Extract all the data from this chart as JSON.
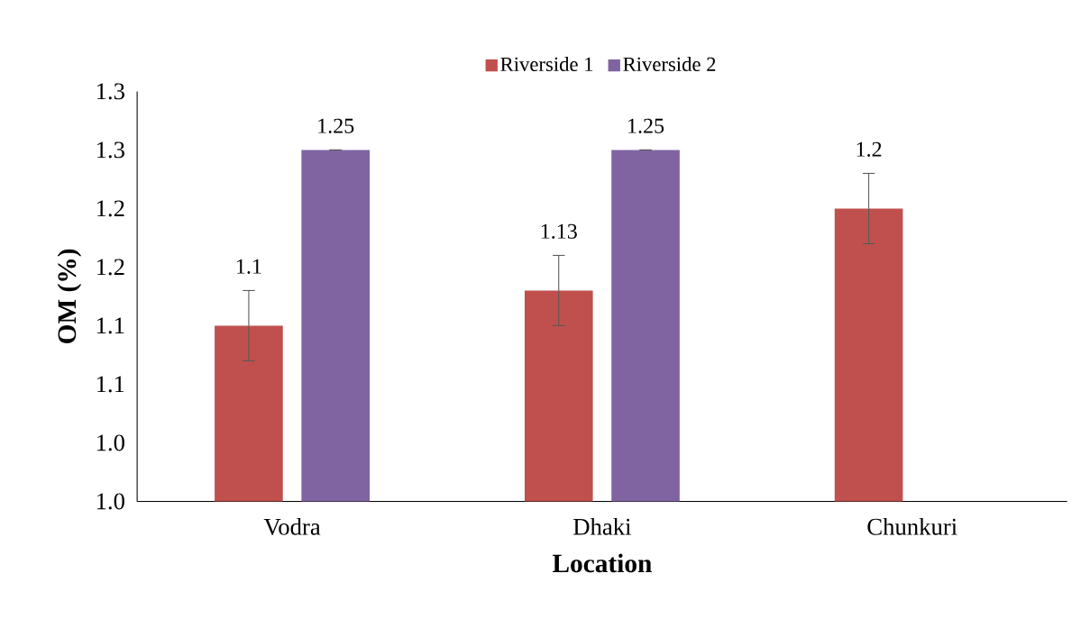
{
  "chart_data": {
    "type": "bar",
    "categories": [
      "Vodra",
      "Dhaki",
      "Chunkuri"
    ],
    "series": [
      {
        "name": "Riverside 1",
        "color": "#c0504d",
        "values": [
          1.1,
          1.13,
          1.2
        ],
        "errors": [
          0.03,
          0.03,
          0.03
        ]
      },
      {
        "name": "Riverside 2",
        "color": "#8064a2",
        "values": [
          1.25,
          1.25,
          null
        ],
        "errors": [
          0,
          0,
          null
        ]
      }
    ],
    "xlabel": "Location",
    "ylabel": "OM (%)",
    "ylim": [
      0.95,
      1.3
    ],
    "yticks": [
      {
        "value": 0.95,
        "label": "1.0"
      },
      {
        "value": 1.0,
        "label": "1.0"
      },
      {
        "value": 1.05,
        "label": "1.1"
      },
      {
        "value": 1.1,
        "label": "1.1"
      },
      {
        "value": 1.15,
        "label": "1.2"
      },
      {
        "value": 1.2,
        "label": "1.2"
      },
      {
        "value": 1.25,
        "label": "1.3"
      },
      {
        "value": 1.3,
        "label": "1.3"
      }
    ],
    "data_labels": true,
    "legend": "top",
    "grid": false
  }
}
